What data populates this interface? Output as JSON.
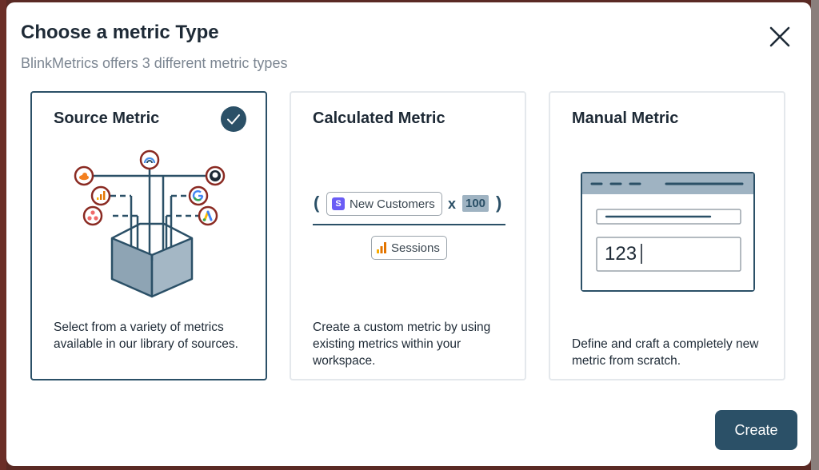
{
  "modal": {
    "title": "Choose a metric Type",
    "subtitle": "BlinkMetrics offers 3 different metric types"
  },
  "cards": [
    {
      "title": "Source Metric",
      "description": "Select from a variety of metrics available in our library of sources.",
      "selected": true,
      "icons": [
        "cloudflare-icon",
        "analytics-icon",
        "asana-icon",
        "blink-icon",
        "github-icon",
        "google-icon",
        "google-ads-icon"
      ]
    },
    {
      "title": "Calculated Metric",
      "description": "Create a custom metric by using existing metrics within your workspace.",
      "formula": {
        "open_paren": "(",
        "close_paren": ")",
        "numerator_chip": "New Customers",
        "numerator_logo": "S",
        "operator": "x",
        "multiplier": "100",
        "denominator_chip": "Sessions"
      }
    },
    {
      "title": "Manual Metric",
      "description": "Define and craft a completely new metric from scratch.",
      "input_value": "123"
    }
  ],
  "footer": {
    "create_label": "Create"
  },
  "colors": {
    "primary": "#2b5067",
    "border": "#e4e8ec",
    "text": "#1e2a36",
    "muted": "#7b8591"
  }
}
